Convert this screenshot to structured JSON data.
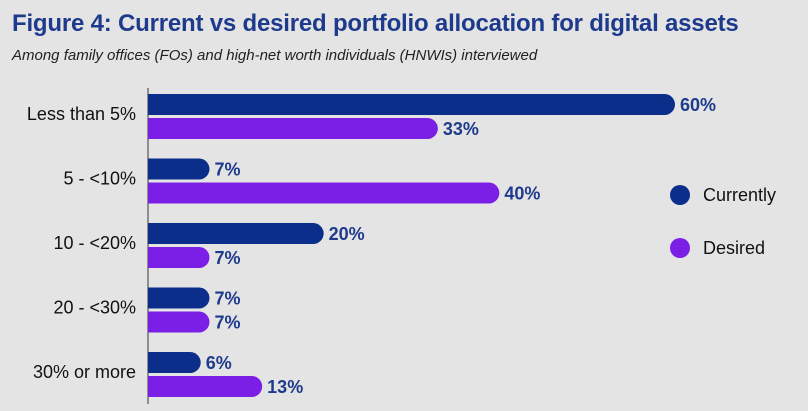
{
  "header": {
    "title": "Figure 4: Current vs desired portfolio allocation for digital assets",
    "subtitle": "Among family offices (FOs) and high-net worth individuals (HNWIs) interviewed"
  },
  "colors": {
    "currently": "#0a2e8a",
    "desired": "#7b1fe6",
    "axis": "#555555"
  },
  "chart_data": {
    "type": "bar",
    "orientation": "horizontal",
    "categories": [
      "Less than 5%",
      "5 - <10%",
      "10 - <20%",
      "20 - <30%",
      "30% or more"
    ],
    "series": [
      {
        "name": "Currently",
        "values": [
          60,
          7,
          20,
          7,
          6
        ],
        "labels": [
          "60%",
          "7%",
          "20%",
          "7%",
          "6%"
        ]
      },
      {
        "name": "Desired",
        "values": [
          33,
          40,
          7,
          7,
          13
        ],
        "labels": [
          "33%",
          "40%",
          "7%",
          "7%",
          "13%"
        ]
      }
    ],
    "xlim": [
      0,
      60
    ],
    "grid": false,
    "legend": "right"
  }
}
